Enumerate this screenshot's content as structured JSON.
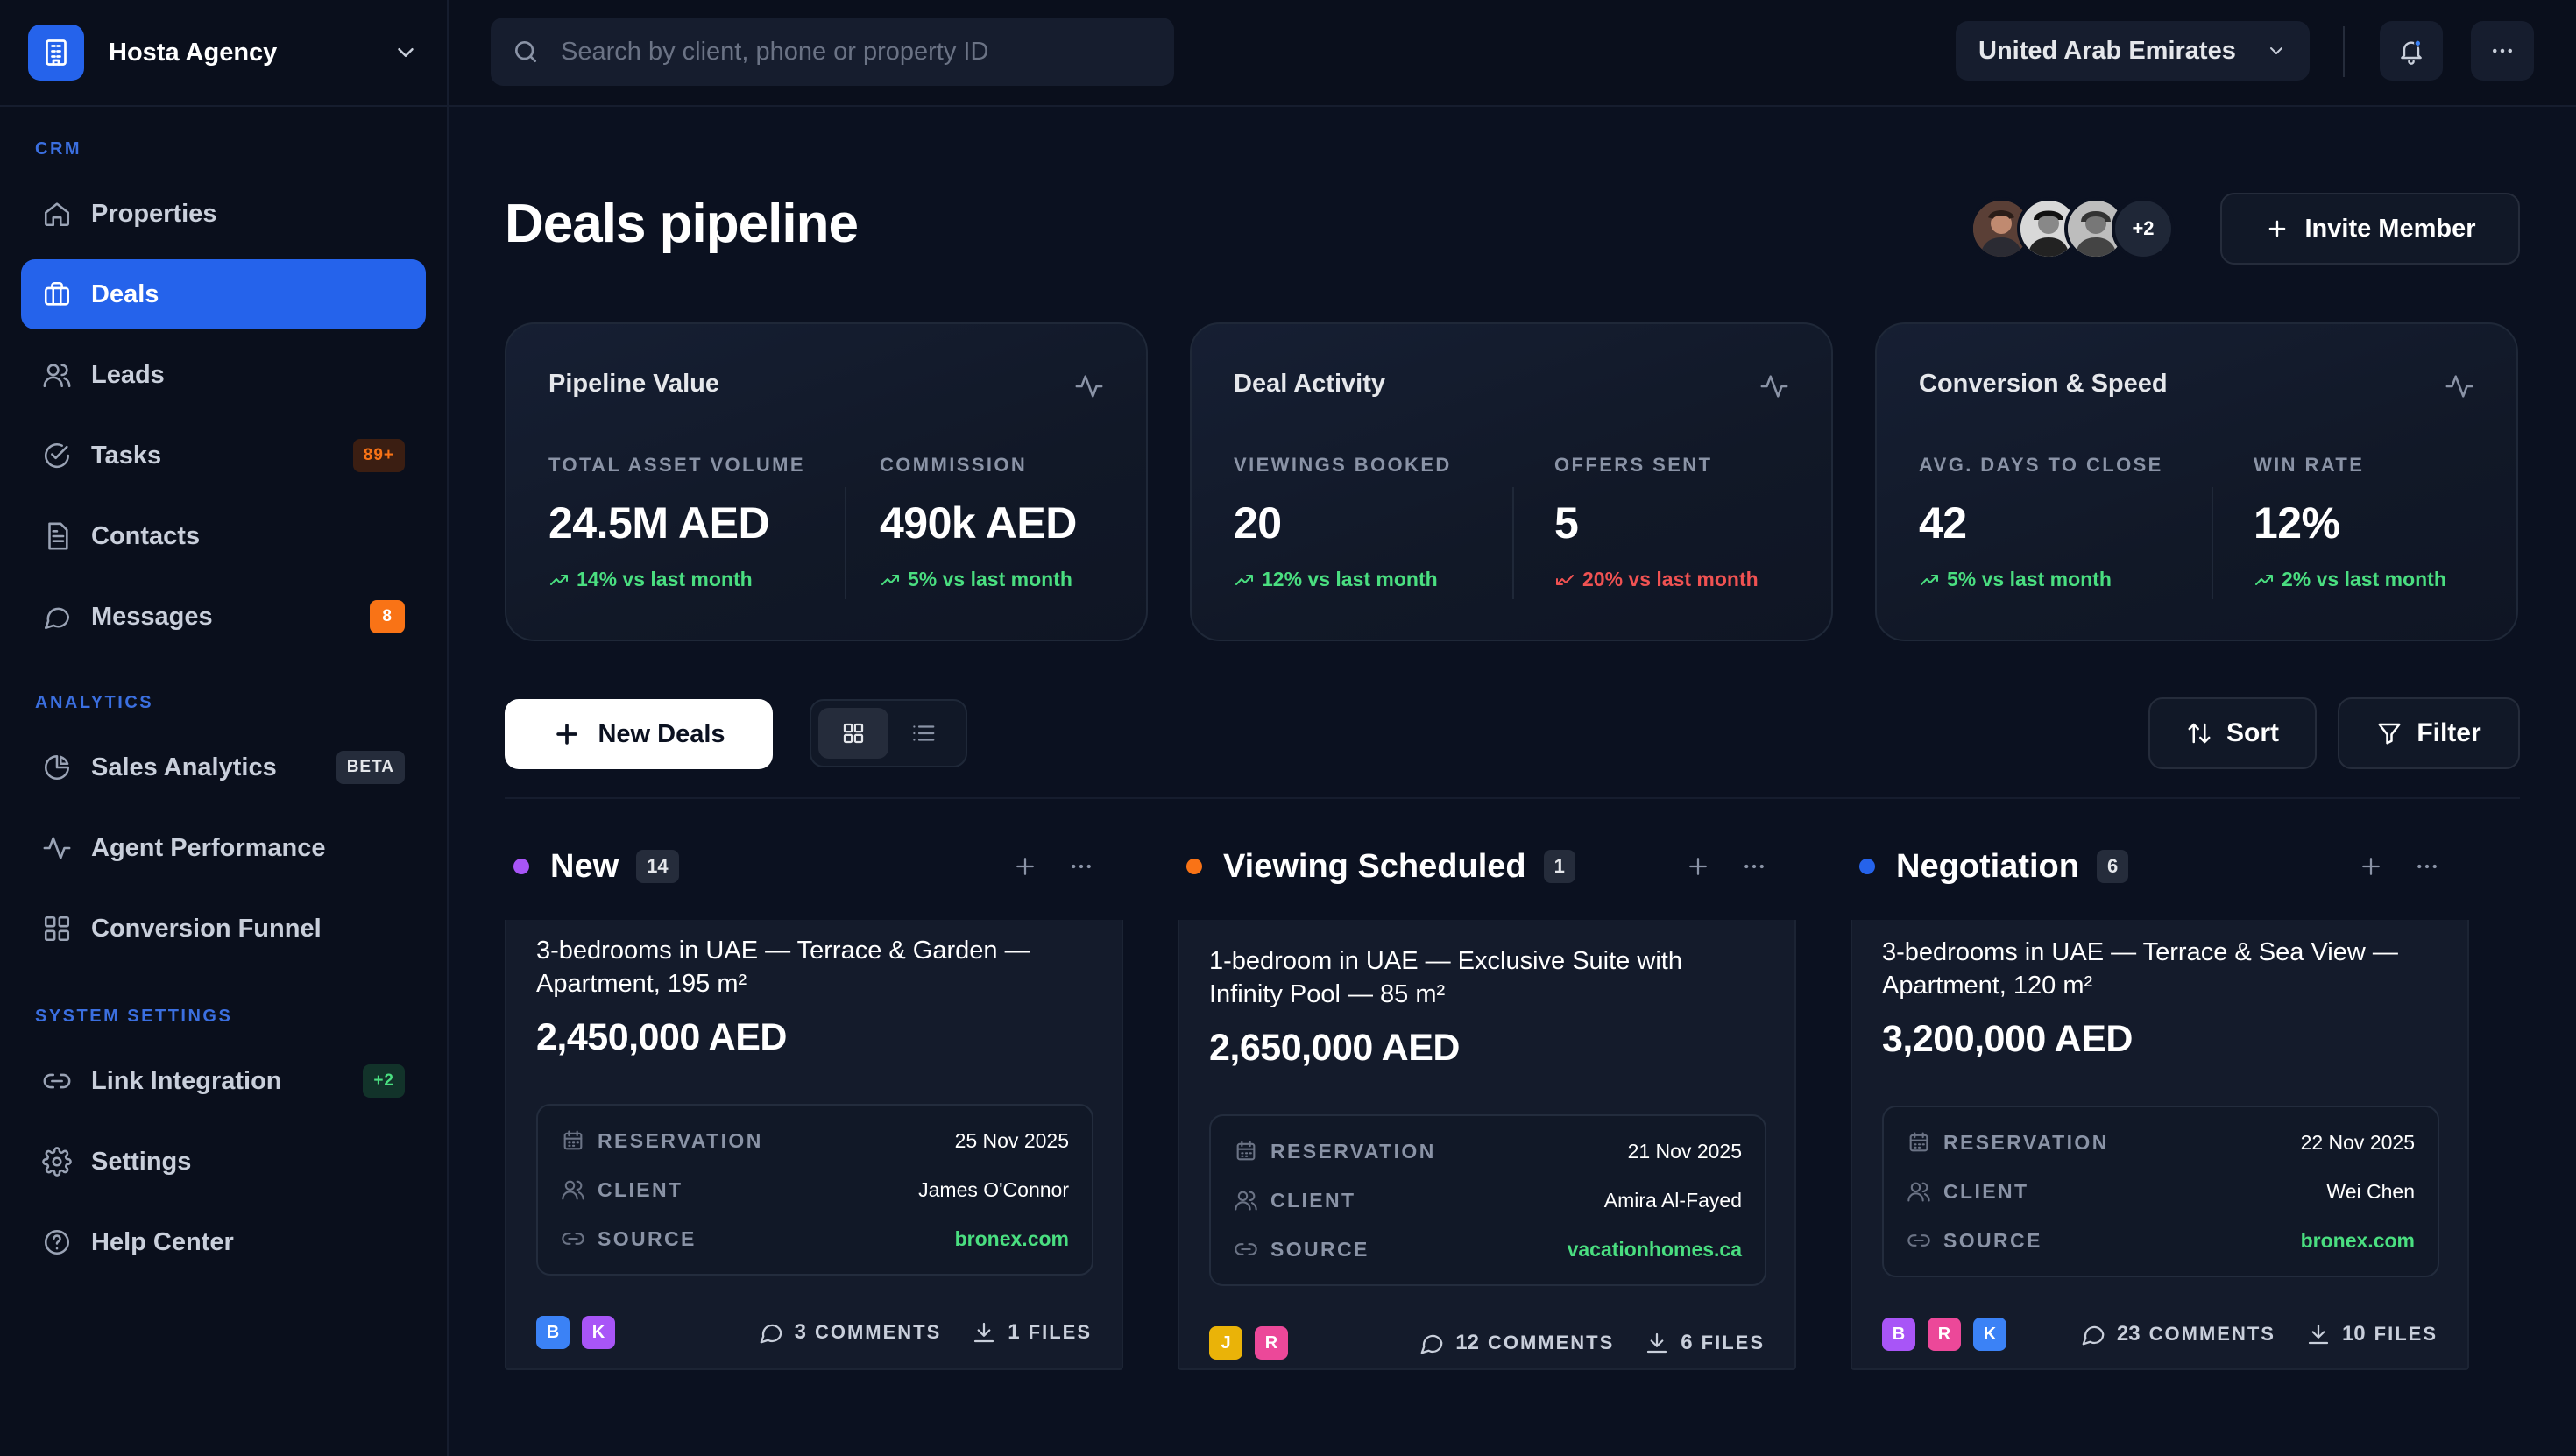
{
  "brand": {
    "name": "Hosta Agency"
  },
  "sidebar": {
    "sections": [
      {
        "title": "CRM",
        "items": [
          {
            "label": "Properties",
            "icon": "home-icon"
          },
          {
            "label": "Deals",
            "icon": "briefcase-icon",
            "active": true
          },
          {
            "label": "Leads",
            "icon": "users-icon"
          },
          {
            "label": "Tasks",
            "icon": "check-circle-icon",
            "badge": "89+"
          },
          {
            "label": "Contacts",
            "icon": "document-icon"
          },
          {
            "label": "Messages",
            "icon": "chat-icon",
            "badge": "8"
          }
        ]
      },
      {
        "title": "ANALYTICS",
        "items": [
          {
            "label": "Sales Analytics",
            "icon": "pie-chart-icon",
            "badge": "BETA"
          },
          {
            "label": "Agent Performance",
            "icon": "activity-icon"
          },
          {
            "label": "Conversion Funnel",
            "icon": "grid-icon"
          }
        ]
      },
      {
        "title": "SYSTEM SETTINGS",
        "items": [
          {
            "label": "Link Integration",
            "icon": "link-icon",
            "badge": "+2"
          },
          {
            "label": "Settings",
            "icon": "gear-icon"
          },
          {
            "label": "Help Center",
            "icon": "help-icon"
          }
        ]
      }
    ]
  },
  "topbar": {
    "search_placeholder": "Search by client, phone or property ID",
    "search_value": "",
    "country": "United Arab Emirates"
  },
  "header": {
    "title": "Deals pipeline",
    "avatars_more": "+2",
    "invite_label": "Invite Member"
  },
  "stats": [
    {
      "title": "Pipeline Value",
      "metrics": [
        {
          "label": "TOTAL ASSET VOLUME",
          "value": "24.5M AED",
          "trend": "14% vs last month",
          "direction": "up"
        },
        {
          "label": "COMMISSION",
          "value": "490k AED",
          "trend": "5% vs last month",
          "direction": "up"
        }
      ]
    },
    {
      "title": "Deal Activity",
      "metrics": [
        {
          "label": "VIEWINGS BOOKED",
          "value": "20",
          "trend": "12% vs last month",
          "direction": "up"
        },
        {
          "label": "OFFERS SENT",
          "value": "5",
          "trend": "20% vs last month",
          "direction": "down"
        }
      ]
    },
    {
      "title": "Conversion & Speed",
      "metrics": [
        {
          "label": "AVG. DAYS TO CLOSE",
          "value": "42",
          "trend": "5% vs last month",
          "direction": "up"
        },
        {
          "label": "WIN RATE",
          "value": "12%",
          "trend": "2% vs last month",
          "direction": "up"
        }
      ]
    }
  ],
  "toolbar": {
    "new_deals_label": "New Deals",
    "sort_label": "Sort",
    "filter_label": "Filter"
  },
  "columns": [
    {
      "title": "New",
      "count": "14",
      "color": "#a855f7",
      "card": {
        "title": "3-bedrooms in UAE — Terrace & Garden — Apartment, 195 m²",
        "price": "2,450,000 AED",
        "reservation_label": "RESERVATION",
        "reservation": "25 Nov 2025",
        "client_label": "CLIENT",
        "client": "James O'Connor",
        "source_label": "SOURCE",
        "source": "bronex.com",
        "avatars": [
          {
            "letter": "B",
            "color": "#3b82f6"
          },
          {
            "letter": "K",
            "color": "#a855f7"
          }
        ],
        "comments_n": "3",
        "comments_label": "COMMENTS",
        "files_n": "1",
        "files_label": "FILES"
      }
    },
    {
      "title": "Viewing Scheduled",
      "count": "1",
      "color": "#f97316",
      "card": {
        "title": "1-bedroom in UAE — Exclusive Suite with Infinity Pool — 85 m²",
        "price": "2,650,000 AED",
        "reservation_label": "RESERVATION",
        "reservation": "21 Nov 2025",
        "client_label": "CLIENT",
        "client": "Amira Al-Fayed",
        "source_label": "SOURCE",
        "source": "vacationhomes.ca",
        "avatars": [
          {
            "letter": "J",
            "color": "#eab308"
          },
          {
            "letter": "R",
            "color": "#ec4899"
          }
        ],
        "comments_n": "12",
        "comments_label": "COMMENTS",
        "files_n": "6",
        "files_label": "FILES"
      }
    },
    {
      "title": "Negotiation",
      "count": "6",
      "color": "#2563eb",
      "card": {
        "title": "3-bedrooms in UAE — Terrace & Sea View — Apartment, 120 m²",
        "price": "3,200,000 AED",
        "reservation_label": "RESERVATION",
        "reservation": "22 Nov 2025",
        "client_label": "CLIENT",
        "client": "Wei Chen",
        "source_label": "SOURCE",
        "source": "bronex.com",
        "avatars": [
          {
            "letter": "B",
            "color": "#a855f7"
          },
          {
            "letter": "R",
            "color": "#ec4899"
          },
          {
            "letter": "K",
            "color": "#3b82f6"
          }
        ],
        "comments_n": "23",
        "comments_label": "COMMENTS",
        "files_n": "10",
        "files_label": "FILES"
      }
    }
  ]
}
